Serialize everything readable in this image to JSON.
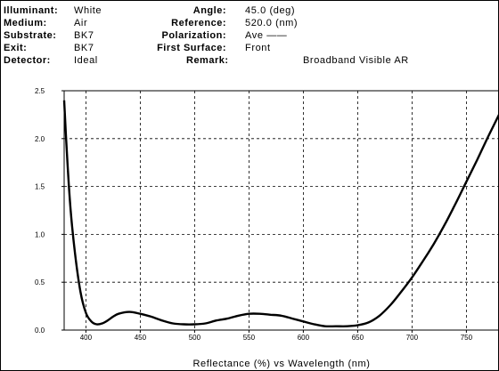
{
  "header": {
    "illuminant_label": "Illuminant:",
    "illuminant_value": "White",
    "medium_label": "Medium:",
    "medium_value": "Air",
    "substrate_label": "Substrate:",
    "substrate_value": "BK7",
    "exit_label": "Exit:",
    "exit_value": "BK7",
    "detector_label": "Detector:",
    "detector_value": "Ideal",
    "angle_label": "Angle:",
    "angle_value": "45.0 (deg)",
    "reference_label": "Reference:",
    "reference_value": "520.0 (nm)",
    "polarization_label": "Polarization:",
    "polarization_value": "Ave ——",
    "first_surface_label": "First Surface:",
    "first_surface_value": "Front",
    "remark_label": "Remark:",
    "remark_value": "Broadband Visible AR"
  },
  "chart_data": {
    "type": "line",
    "title": "",
    "xlabel": "Reflectance (%) vs Wavelength (nm)",
    "ylabel": "",
    "xlim": [
      380,
      780
    ],
    "ylim": [
      0,
      2.5
    ],
    "x_ticks": [
      400,
      450,
      500,
      550,
      600,
      650,
      700,
      750
    ],
    "y_ticks": [
      0.0,
      0.5,
      1.0,
      1.5,
      2.0,
      2.5
    ],
    "x_tick_labels": [
      "400",
      "450",
      "500",
      "550",
      "600",
      "650",
      "700",
      "750"
    ],
    "y_tick_labels": [
      "0.0",
      "0.5",
      "1.0",
      "1.5",
      "2.0",
      "2.5"
    ],
    "grid": true,
    "series": [
      {
        "color": "#000000",
        "x": [
          380,
          383,
          386,
          390,
          395,
          400,
          405,
          410,
          415,
          420,
          425,
          430,
          440,
          450,
          460,
          470,
          480,
          490,
          500,
          510,
          520,
          530,
          540,
          550,
          560,
          570,
          580,
          590,
          600,
          610,
          620,
          630,
          640,
          650,
          660,
          670,
          680,
          690,
          700,
          710,
          720,
          730,
          740,
          750,
          760,
          770,
          780
        ],
        "y": [
          2.4,
          1.75,
          1.25,
          0.8,
          0.4,
          0.18,
          0.09,
          0.06,
          0.07,
          0.1,
          0.14,
          0.17,
          0.19,
          0.17,
          0.14,
          0.1,
          0.07,
          0.06,
          0.06,
          0.07,
          0.1,
          0.12,
          0.15,
          0.17,
          0.17,
          0.16,
          0.15,
          0.12,
          0.09,
          0.06,
          0.04,
          0.04,
          0.04,
          0.05,
          0.08,
          0.15,
          0.26,
          0.4,
          0.55,
          0.72,
          0.9,
          1.1,
          1.32,
          1.55,
          1.78,
          2.02,
          2.25
        ]
      }
    ]
  }
}
